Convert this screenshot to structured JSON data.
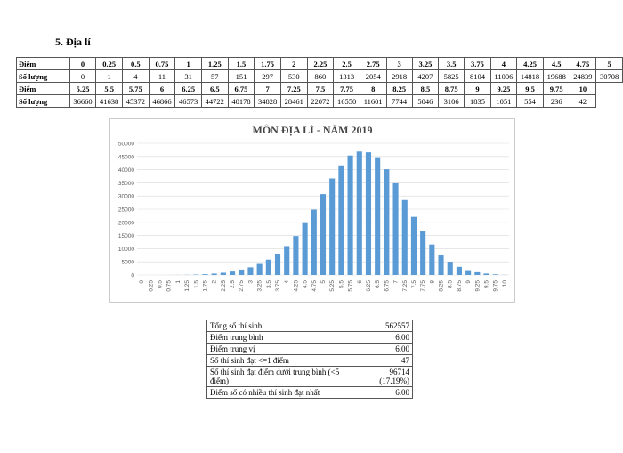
{
  "heading": "5.  Địa lí",
  "table": {
    "score_label": "Điểm",
    "count_label": "Số lượng",
    "rows": [
      {
        "scores": [
          "0",
          "0.25",
          "0.5",
          "0.75",
          "1",
          "1.25",
          "1.5",
          "1.75",
          "2",
          "2.25",
          "2.5",
          "2.75",
          "3",
          "3.25",
          "3.5",
          "3.75",
          "4",
          "4.25",
          "4.5",
          "4.75",
          "5"
        ],
        "counts": [
          "0",
          "1",
          "4",
          "11",
          "31",
          "57",
          "151",
          "297",
          "530",
          "860",
          "1313",
          "2054",
          "2918",
          "4207",
          "5825",
          "8104",
          "11006",
          "14818",
          "19688",
          "24839",
          "30708"
        ]
      },
      {
        "scores": [
          "5.25",
          "5.5",
          "5.75",
          "6",
          "6.25",
          "6.5",
          "6.75",
          "7",
          "7.25",
          "7.5",
          "7.75",
          "8",
          "8.25",
          "8.5",
          "8.75",
          "9",
          "9.25",
          "9.5",
          "9.75",
          "10"
        ],
        "counts": [
          "36660",
          "41638",
          "45372",
          "46866",
          "46573",
          "44722",
          "40178",
          "34828",
          "28461",
          "22072",
          "16550",
          "11601",
          "7744",
          "5046",
          "3106",
          "1835",
          "1051",
          "554",
          "236",
          "42"
        ]
      }
    ]
  },
  "chart_data": {
    "type": "bar",
    "title": "MÔN ĐỊA LÍ - NĂM 2019",
    "xlabel": "",
    "ylabel": "",
    "ylim": [
      0,
      50000
    ],
    "yticks": [
      0,
      5000,
      10000,
      15000,
      20000,
      25000,
      30000,
      35000,
      40000,
      45000,
      50000
    ],
    "categories": [
      "0",
      "0.25",
      "0.5",
      "0.75",
      "1",
      "1.25",
      "1.5",
      "1.75",
      "2",
      "2.25",
      "2.5",
      "2.75",
      "3",
      "3.25",
      "3.5",
      "3.75",
      "4",
      "4.25",
      "4.5",
      "4.75",
      "5",
      "5.25",
      "5.5",
      "5.75",
      "6",
      "6.25",
      "6.5",
      "6.75",
      "7",
      "7.25",
      "7.5",
      "7.75",
      "8",
      "8.25",
      "8.5",
      "8.75",
      "9",
      "9.25",
      "9.5",
      "9.75",
      "10"
    ],
    "values": [
      0,
      1,
      4,
      11,
      31,
      57,
      151,
      297,
      530,
      860,
      1313,
      2054,
      2918,
      4207,
      5825,
      8104,
      11006,
      14818,
      19688,
      24839,
      30708,
      36660,
      41638,
      45372,
      46866,
      46573,
      44722,
      40178,
      34828,
      28461,
      22072,
      16550,
      11601,
      7744,
      5046,
      3106,
      1835,
      1051,
      554,
      236,
      42
    ],
    "color": "#5b9bd5",
    "grid": true
  },
  "stats": [
    {
      "label": "Tổng số thí sinh",
      "value": "562557"
    },
    {
      "label": "Điểm trung bình",
      "value": "6.00"
    },
    {
      "label": "Điểm trung vị",
      "value": "6.00"
    },
    {
      "label": "Số thí sinh đạt <=1 điểm",
      "value": "47"
    },
    {
      "label": "Số thí sinh đạt điểm dưới trung bình (<5 điểm)",
      "value": "96714",
      "value2": "(17.19%)"
    },
    {
      "label": "Điểm số có nhiều thí sinh đạt nhất",
      "value": "6.00"
    }
  ]
}
